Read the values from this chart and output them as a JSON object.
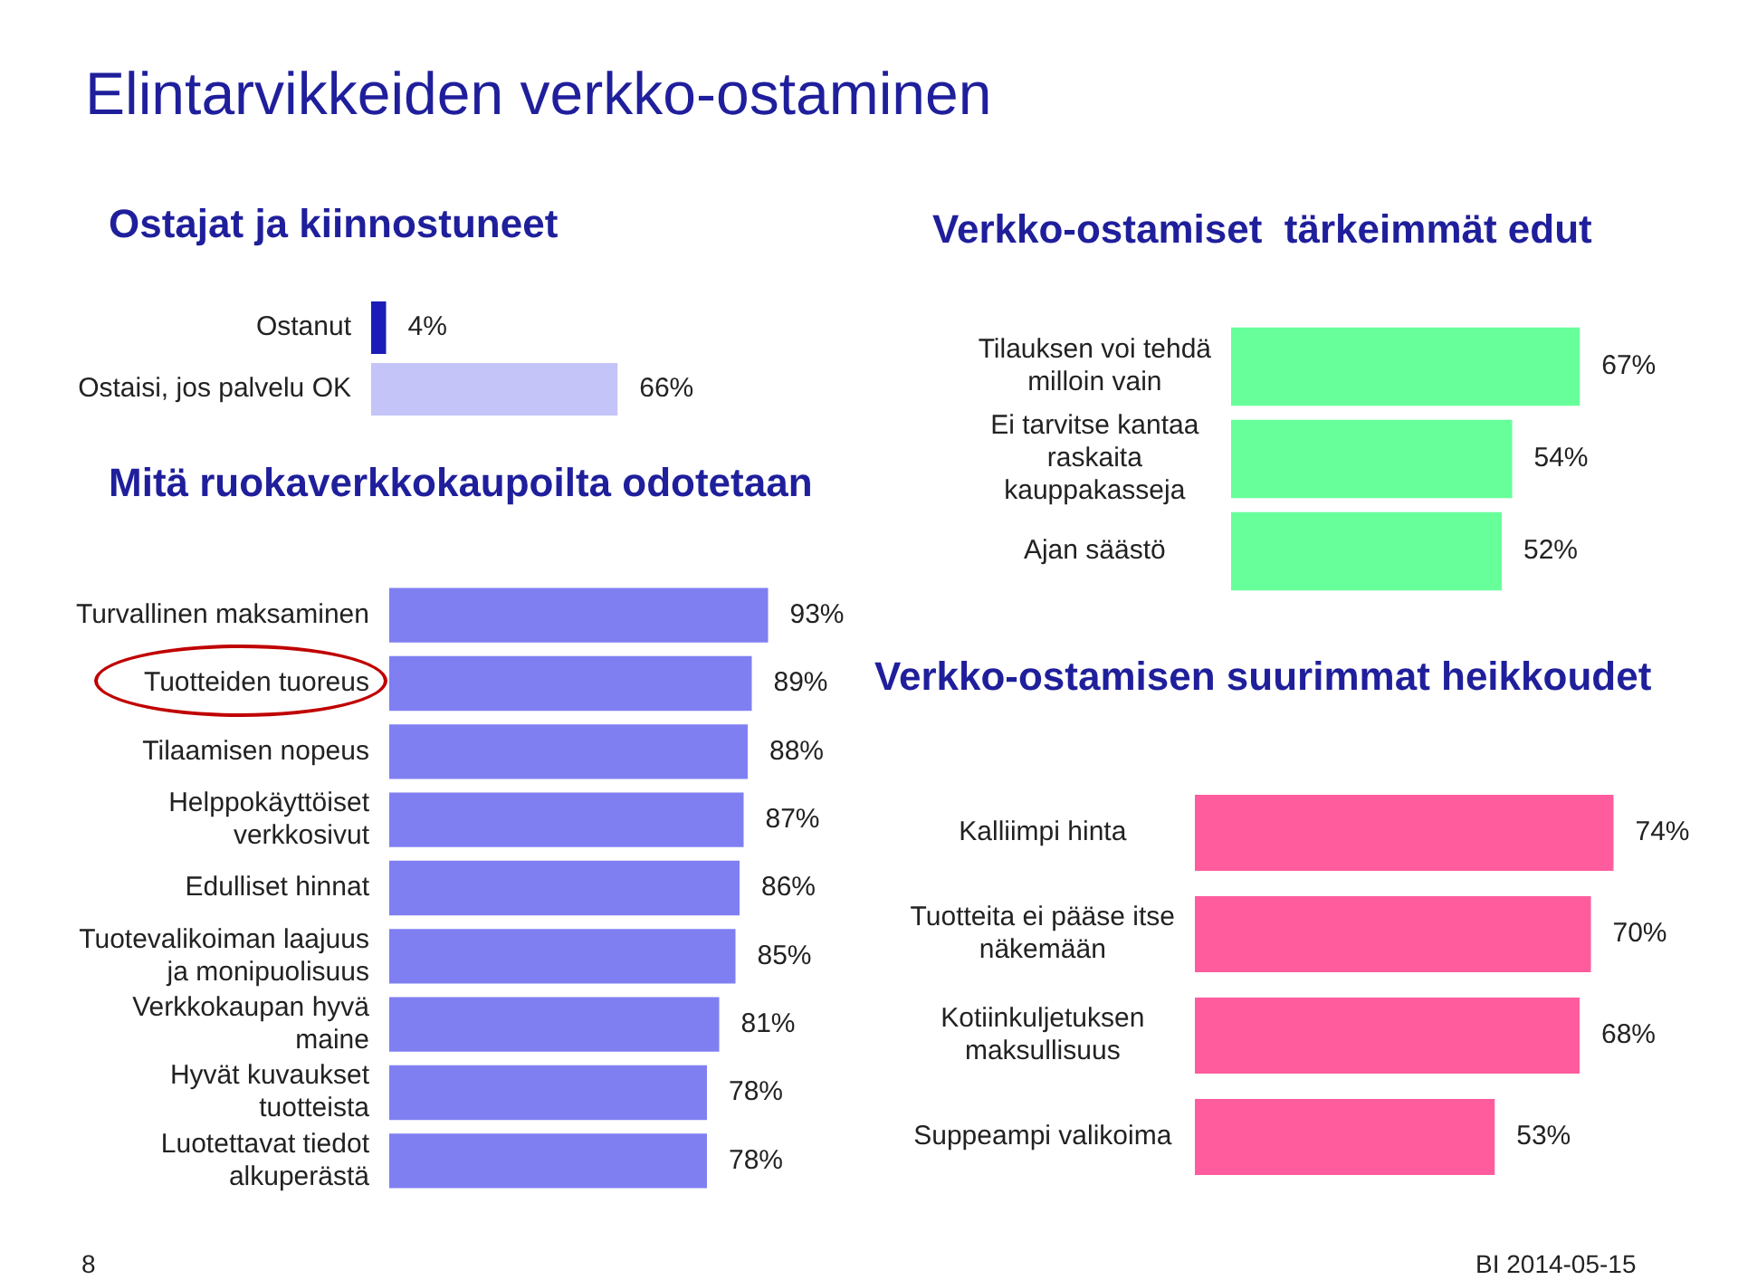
{
  "chart_data": [
    {
      "type": "bar",
      "orientation": "horizontal",
      "title": "Elintarvikkeiden verkko-ostaminen",
      "subtitle": "Ostajat ja kiinnostuneet",
      "categories": [
        "Ostanut",
        "Ostaisi, jos palvelu OK"
      ],
      "values": [
        4,
        66
      ],
      "colors": [
        "#1c1cb8",
        "#c4c4f8"
      ],
      "value_labels": [
        "4%",
        "66%"
      ],
      "annotations": [
        "8",
        "BI 2014-05-15"
      ]
    },
    {
      "type": "bar",
      "orientation": "horizontal",
      "title": "Mitä ruokaverkkokaupoilta odotetaan",
      "categories": [
        "Turvallinen maksaminen",
        "Tuotteiden tuoreus",
        "Tilaamisen nopeus",
        "Helppokäyttöiset\nverkkosivut",
        "Edulliset hinnat",
        "Tuotevalikoiman laajuus\nja monipuolisuus",
        "Verkkokaupan hyvä\nmaine",
        "Hyvät kuvaukset\ntuotteista",
        "Luotettavat tiedot\nalkuperästä"
      ],
      "values": [
        93,
        89,
        88,
        87,
        86,
        85,
        81,
        78,
        78
      ],
      "color": "#7f7ff2",
      "value_labels": [
        "93%",
        "89%",
        "88%",
        "87%",
        "86%",
        "85%",
        "81%",
        "78%",
        "78%"
      ]
    },
    {
      "type": "bar",
      "orientation": "horizontal",
      "title": "Verkko-ostamiset  tärkeimmät edut",
      "categories": [
        "Tilauksen voi tehdä\nmilloin vain",
        "Ei tarvitse kantaa\nraskaita\nkauppakasseja",
        "Ajan säästö"
      ],
      "values": [
        67,
        54,
        52
      ],
      "color": "#66ff99",
      "value_labels": [
        "67%",
        "54%",
        "52%"
      ]
    },
    {
      "type": "bar",
      "orientation": "horizontal",
      "title": "Verkko-ostamisen suurimmat heikkoudet",
      "categories": [
        "Kalliimpi hinta",
        "Tuotteita ei pääse itse\nnäkemään",
        "Kotiinkuljetuksen\nmaksullisuus",
        "Suppeampi valikoima"
      ],
      "values": [
        74,
        70,
        68,
        53
      ],
      "color": "#ff5c9e",
      "value_labels": [
        "74%",
        "70%",
        "68%",
        "53%"
      ]
    }
  ]
}
